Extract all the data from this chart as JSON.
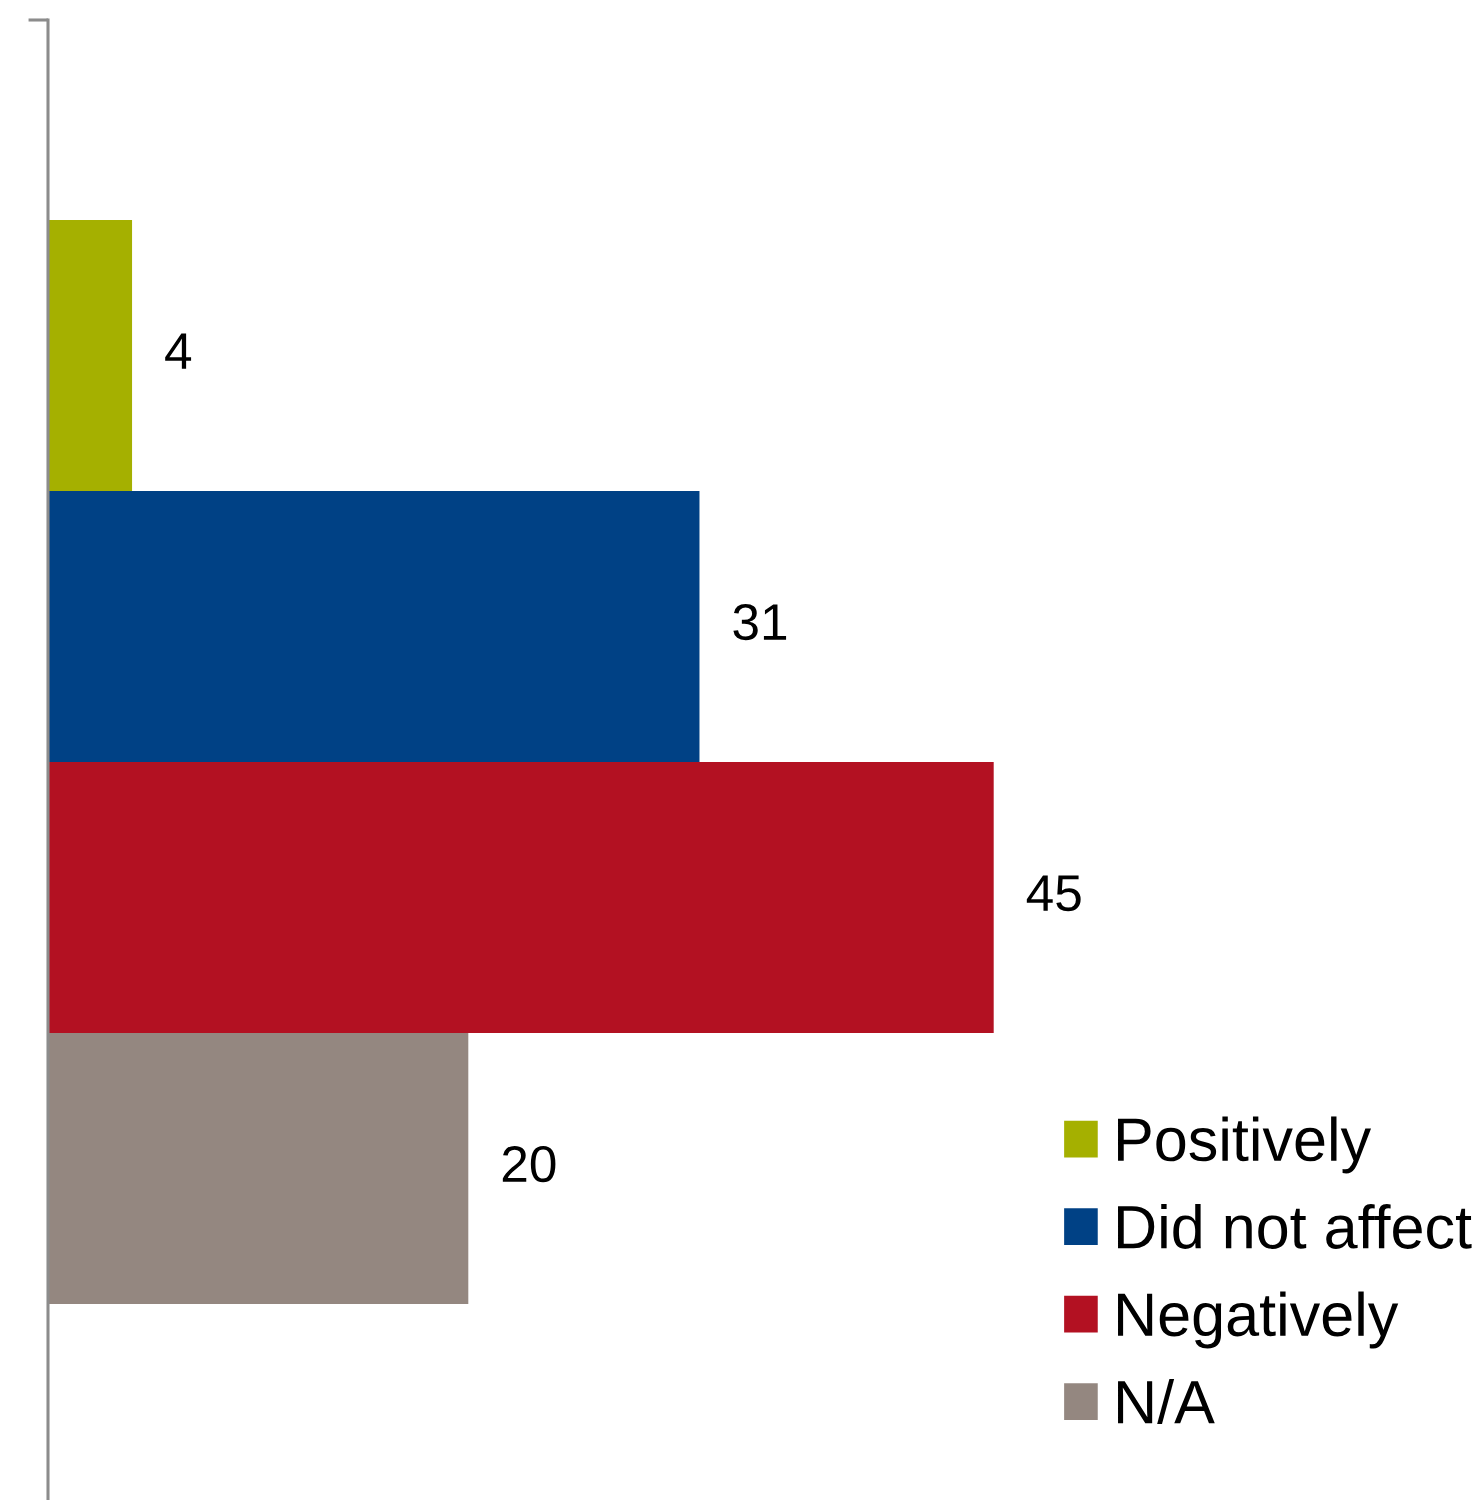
{
  "chart_data": {
    "type": "bar",
    "orientation": "horizontal",
    "categories": [
      null
    ],
    "series": [
      {
        "name": "Positively",
        "color": "#a5b000",
        "values": [
          4
        ]
      },
      {
        "name": "Did not affect",
        "color": "#004185",
        "values": [
          31
        ]
      },
      {
        "name": "Negatively",
        "color": "#b31122",
        "values": [
          45
        ]
      },
      {
        "name": "N/A",
        "color": "#948780",
        "values": [
          20
        ]
      }
    ],
    "data_labels": true,
    "legend": "bottom right"
  }
}
